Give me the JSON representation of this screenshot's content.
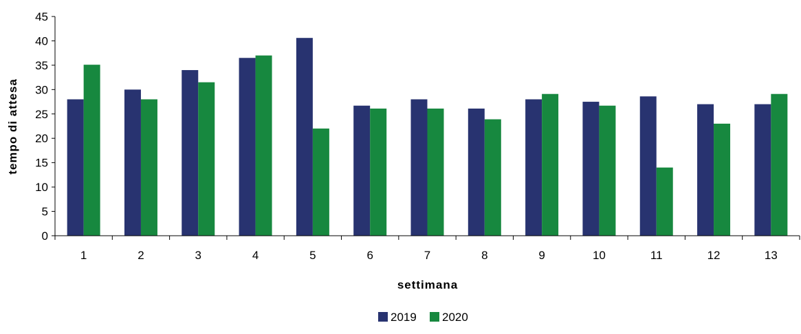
{
  "chart_data": {
    "type": "bar",
    "title": "",
    "xlabel": "settimana",
    "ylabel": "tempo di attesa",
    "categories": [
      "1",
      "2",
      "3",
      "4",
      "5",
      "6",
      "7",
      "8",
      "9",
      "10",
      "11",
      "12",
      "13"
    ],
    "ylim": [
      0,
      45
    ],
    "yticks": [
      0,
      5,
      10,
      15,
      20,
      25,
      30,
      35,
      40,
      45
    ],
    "grid": false,
    "legend_position": "bottom",
    "series": [
      {
        "name": "2019",
        "color": "#283370",
        "values": [
          28,
          30,
          34,
          36.5,
          40.6,
          26.7,
          28,
          26.1,
          28,
          27.5,
          28.6,
          27,
          27
        ]
      },
      {
        "name": "2020",
        "color": "#17883f",
        "values": [
          35.1,
          28,
          31.5,
          37,
          22,
          26.1,
          26.1,
          23.9,
          29.1,
          26.7,
          14,
          23,
          29.1
        ]
      }
    ]
  }
}
